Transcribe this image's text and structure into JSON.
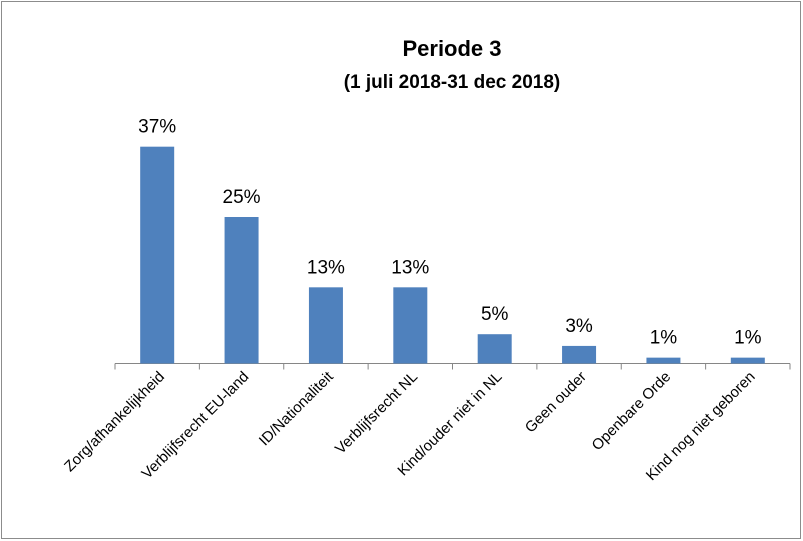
{
  "chart_data": {
    "type": "bar",
    "title": "Periode 3",
    "subtitle": "(1 juli 2018-31 dec 2018)",
    "categories": [
      "Zorg/afhankelijkheid",
      "Verblijfsrecht EU-land",
      "ID/Nationaliteit",
      "Verblijfsrecht NL",
      "Kind/ouder niet in NL",
      "Geen ouder",
      "Openbare Orde",
      "Kind nog niet geboren"
    ],
    "values": [
      37,
      25,
      13,
      13,
      5,
      3,
      1,
      1
    ],
    "value_labels": [
      "37%",
      "25%",
      "13%",
      "13%",
      "5%",
      "3%",
      "1%",
      "1%"
    ],
    "color": "#4f81bd"
  }
}
